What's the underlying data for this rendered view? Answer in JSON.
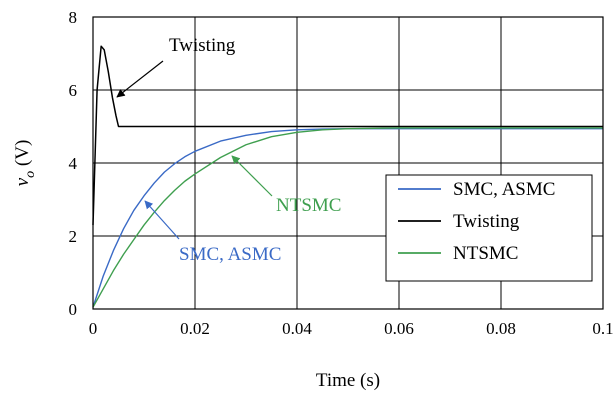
{
  "chart_data": {
    "type": "line",
    "title": "",
    "xlabel": "Time (s)",
    "ylabel": "v_o (V)",
    "xlim": [
      0,
      0.1
    ],
    "ylim": [
      0,
      8
    ],
    "grid": true,
    "legend_position": "right-middle",
    "x_ticks": [
      {
        "value": 0,
        "label": "0"
      },
      {
        "value": 0.02,
        "label": "0.02"
      },
      {
        "value": 0.04,
        "label": "0.04"
      },
      {
        "value": 0.06,
        "label": "0.06"
      },
      {
        "value": 0.08,
        "label": "0.08"
      },
      {
        "value": 0.1,
        "label": "0.1"
      }
    ],
    "y_ticks": [
      {
        "value": 0,
        "label": "0"
      },
      {
        "value": 2,
        "label": "2"
      },
      {
        "value": 4,
        "label": "4"
      },
      {
        "value": 6,
        "label": "6"
      },
      {
        "value": 8,
        "label": "8"
      }
    ],
    "series": [
      {
        "name": "SMC, ASMC",
        "color": "#3a6ac6",
        "x": [
          0,
          0.002,
          0.004,
          0.006,
          0.008,
          0.01,
          0.012,
          0.014,
          0.016,
          0.018,
          0.02,
          0.025,
          0.03,
          0.035,
          0.04,
          0.045,
          0.05,
          0.06,
          0.07,
          0.08,
          0.09,
          0.1
        ],
        "y": [
          0.05,
          0.9,
          1.6,
          2.2,
          2.7,
          3.1,
          3.45,
          3.75,
          3.98,
          4.17,
          4.32,
          4.6,
          4.76,
          4.86,
          4.91,
          4.93,
          4.94,
          4.94,
          4.94,
          4.94,
          4.94,
          4.94
        ]
      },
      {
        "name": "Twisting",
        "color": "#000000",
        "x": [
          0,
          0.0008,
          0.0016,
          0.0022,
          0.003,
          0.0038,
          0.0045,
          0.005,
          0.006,
          0.01,
          0.02,
          0.03,
          0.04,
          0.05,
          0.06,
          0.07,
          0.08,
          0.09,
          0.1
        ],
        "y": [
          2.3,
          6.0,
          7.2,
          7.1,
          6.5,
          5.8,
          5.3,
          5.0,
          5.0,
          5.0,
          5.0,
          5.0,
          5.0,
          5.0,
          5.0,
          5.0,
          5.0,
          5.0,
          5.0
        ]
      },
      {
        "name": "NTSMC",
        "color": "#3f9f4f",
        "x": [
          0,
          0.002,
          0.004,
          0.006,
          0.008,
          0.01,
          0.012,
          0.014,
          0.016,
          0.018,
          0.02,
          0.025,
          0.03,
          0.035,
          0.04,
          0.045,
          0.05,
          0.06,
          0.07,
          0.08,
          0.09,
          0.1
        ],
        "y": [
          0.05,
          0.55,
          1.05,
          1.5,
          1.9,
          2.3,
          2.65,
          2.97,
          3.25,
          3.5,
          3.7,
          4.15,
          4.5,
          4.72,
          4.84,
          4.91,
          4.94,
          4.96,
          4.96,
          4.96,
          4.96,
          4.96
        ]
      }
    ],
    "annotations": [
      {
        "text": "Twisting",
        "color": "#000000",
        "target_series": "Twisting"
      },
      {
        "text": "NTSMC",
        "color": "#3f9f4f",
        "target_series": "NTSMC"
      },
      {
        "text": "SMC, ASMC",
        "color": "#3a6ac6",
        "target_series": "SMC, ASMC"
      }
    ]
  }
}
